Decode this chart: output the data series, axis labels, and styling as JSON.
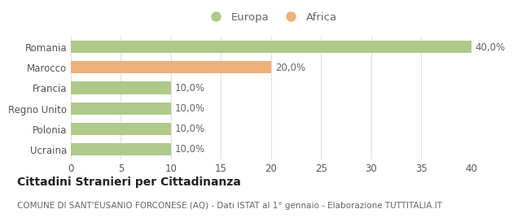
{
  "categories": [
    "Romania",
    "Marocco",
    "Francia",
    "Regno Unito",
    "Polonia",
    "Ucraina"
  ],
  "values": [
    40.0,
    20.0,
    10.0,
    10.0,
    10.0,
    10.0
  ],
  "bar_colors": [
    "#aec98a",
    "#f0b07a",
    "#aec98a",
    "#aec98a",
    "#aec98a",
    "#aec98a"
  ],
  "xlim": [
    0,
    40
  ],
  "xticks": [
    0,
    5,
    10,
    15,
    20,
    25,
    30,
    35,
    40
  ],
  "legend_labels": [
    "Europa",
    "Africa"
  ],
  "legend_colors": [
    "#aec98a",
    "#f0b07a"
  ],
  "title": "Cittadini Stranieri per Cittadinanza",
  "subtitle": "COMUNE DI SANT'EUSANIO FORCONESE (AQ) - Dati ISTAT al 1° gennaio - Elaborazione TUTTITALIA.IT",
  "value_labels": [
    "40,0%",
    "20,0%",
    "10,0%",
    "10,0%",
    "10,0%",
    "10,0%"
  ],
  "background_color": "#ffffff",
  "grid_color": "#e0e0e0",
  "bar_height": 0.6,
  "title_fontsize": 10,
  "subtitle_fontsize": 7.5,
  "label_fontsize": 8.5,
  "tick_fontsize": 8.5,
  "legend_fontsize": 9.5
}
